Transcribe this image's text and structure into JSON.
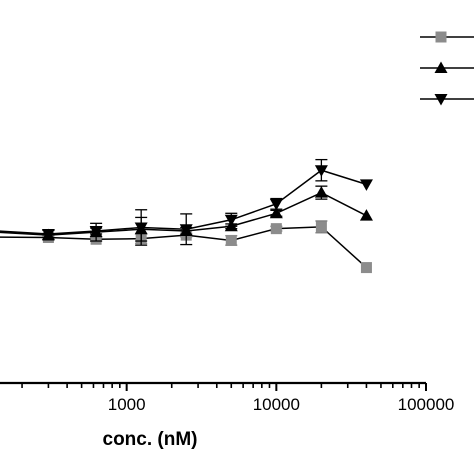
{
  "chart_data": {
    "type": "line",
    "xlabel": "conc. (nM)",
    "x_scale": "log",
    "xlim": [
      100,
      100000
    ],
    "x_tick_labels": [
      "1000",
      "10000",
      "100000"
    ],
    "x_ticks": [
      1000,
      10000,
      100000
    ],
    "y_scale": "linear",
    "y_axis_shown": false,
    "legend_placement": "top-right",
    "legend_labels_visible": false,
    "series": [
      {
        "marker": "square",
        "color": "#8c8c8c",
        "x": [
          100,
          300,
          625,
          1250,
          2500,
          5000,
          10000,
          20000,
          40000
        ],
        "y": [
          4.0,
          3.9,
          3.6,
          3.7,
          4.3,
          3.4,
          5.4,
          5.7,
          -1.2
        ],
        "err": [
          0.0,
          0.3,
          0.3,
          0.8,
          0.3,
          0.8,
          0.4,
          1.0,
          0.0
        ]
      },
      {
        "marker": "triangle-up",
        "color": "#000000",
        "x": [
          100,
          300,
          625,
          1250,
          2500,
          5000,
          10000,
          20000,
          40000
        ],
        "y": [
          5.0,
          4.3,
          4.8,
          5.3,
          5.0,
          5.8,
          8.0,
          11.5,
          7.6
        ],
        "err": [
          0.0,
          0.8,
          1.5,
          2.0,
          0.6,
          0.4,
          0.5,
          1.1,
          0.0
        ]
      },
      {
        "marker": "triangle-down",
        "color": "#000000",
        "x": [
          100,
          300,
          625,
          1250,
          2500,
          5000,
          10000,
          20000,
          40000
        ],
        "y": [
          5.2,
          4.5,
          5.0,
          5.6,
          5.3,
          6.9,
          9.6,
          15.3,
          12.9
        ],
        "err": [
          0.0,
          0.6,
          0.5,
          3.0,
          2.6,
          1.1,
          0.9,
          1.8,
          0.0
        ]
      }
    ]
  }
}
